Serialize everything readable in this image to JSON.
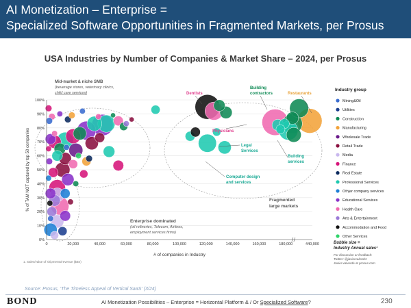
{
  "header": {
    "line1": "AI Monetization – Enterprise =",
    "line2": "Specialized Software Opportunities in Fragmented Markets, per Prosus"
  },
  "subtitle": "USA Industries by Number of Companies & Market Share – 2024, per Prosus",
  "source": "Source: Prosus, 'The Timeless Appeal of Vertical SaaS' (3/24)",
  "footer": {
    "logo": "BOND",
    "text_prefix": "AI Monetization Possibilities – Enterprise = Horizontal Platform & / Or ",
    "text_link": "Specialized Software",
    "text_suffix": "?",
    "page": "230"
  },
  "chart_data": {
    "type": "scatter",
    "xlabel": "# of companies in Industry",
    "ylabel": "% of TAM NOT captured by top 50 companies",
    "footnote": "1. Sales/value of shipments/revenue ($Bn)",
    "x_ticks": [
      "0",
      "20,000",
      "40,000",
      "60,000",
      "80,000",
      "100,000",
      "120,000",
      "140,000",
      "160,000",
      "180,000",
      "440,000"
    ],
    "y_ticks": [
      "0%",
      "10%",
      "20%",
      "30%",
      "40%",
      "50%",
      "60%",
      "70%",
      "80%",
      "90%",
      "100%"
    ],
    "xlim": [
      0,
      200000
    ],
    "ylim": [
      0,
      100
    ],
    "legend_title": "Industry group",
    "legend": [
      {
        "name": "Mining&Oil",
        "color": "#3a6ccf"
      },
      {
        "name": "Utilities",
        "color": "#1c3f8f"
      },
      {
        "name": "Construction",
        "color": "#0f8a55"
      },
      {
        "name": "Manufacturing",
        "color": "#f2a33a"
      },
      {
        "name": "Wholesale Trade",
        "color": "#6a1a8a"
      },
      {
        "name": "Retail Trade",
        "color": "#8a1040"
      },
      {
        "name": "Media",
        "color": "#c9b8ee"
      },
      {
        "name": "Finance",
        "color": "#d6157a"
      },
      {
        "name": "Real Estate",
        "color": "#0b2a5e"
      },
      {
        "name": "Professional Services",
        "color": "#1fc9b0"
      },
      {
        "name": "Othjer company services",
        "color": "#1e7fd6"
      },
      {
        "name": "Educational Services",
        "color": "#8a32c9"
      },
      {
        "name": "Health Care",
        "color": "#f06ab0"
      },
      {
        "name": "Arts & Entertainment",
        "color": "#9b7ad8"
      },
      {
        "name": "Accommodation and Food",
        "color": "#111111"
      },
      {
        "name": "Other Services",
        "color": "#2fd46a"
      }
    ],
    "size_note": "Bubble size = Industry Annual sales¹",
    "contact": [
      "For discussion or feedback:",
      "Twitter: @javiervalerobt",
      "Javier.valverde at prosus.com"
    ],
    "annotations": {
      "midmarket": [
        "Mid-market & niche SMB",
        "(beverage stores, veterinary clinics,",
        "child care services)"
      ],
      "dentists": "Dentists",
      "building_contractors": [
        "Building",
        "contractors"
      ],
      "restaurants": "Restaurants",
      "physicians": "Physicians",
      "legal": [
        "Legal",
        "Services"
      ],
      "building_services": [
        "Building",
        "services"
      ],
      "computer": [
        "Computer design",
        "and services"
      ],
      "fragmented": [
        "Fragmented",
        "large markets"
      ],
      "enterprise": [
        "Enterprise dominated",
        "(oil refineries, Telecom, Airlines,",
        "employment services firms)"
      ]
    },
    "points": [
      {
        "x": 121000,
        "y": 95,
        "r": 3,
        "color": "#111111"
      },
      {
        "x": 130000,
        "y": 96,
        "r": 1.4,
        "color": "#0f8a55"
      },
      {
        "x": 126000,
        "y": 92,
        "r": 2.2,
        "color": "#f06ab0"
      },
      {
        "x": 185000,
        "y": 87,
        "r": 1.5,
        "color": "#0f8a55"
      },
      {
        "x": 190000,
        "y": 94,
        "r": 2.3,
        "color": "#0f8a55"
      },
      {
        "x": 198000,
        "y": 85,
        "r": 3.0,
        "color": "#f2a33a"
      },
      {
        "x": 172000,
        "y": 84,
        "r": 3.2,
        "color": "#f06ab0"
      },
      {
        "x": 185000,
        "y": 83,
        "r": 2.4,
        "color": "#0f8a55"
      },
      {
        "x": 179000,
        "y": 83,
        "r": 1.2,
        "color": "#1fc9b0"
      },
      {
        "x": 174000,
        "y": 82,
        "r": 1.4,
        "color": "#1fc9b0"
      },
      {
        "x": 182000,
        "y": 78,
        "r": 2.3,
        "color": "#1fc9b0"
      },
      {
        "x": 186000,
        "y": 75,
        "r": 1.8,
        "color": "#0f8a55"
      },
      {
        "x": 176000,
        "y": 79,
        "r": 1.1,
        "color": "#1fc9b0"
      },
      {
        "x": 121000,
        "y": 69,
        "r": 2.2,
        "color": "#1fc9b0"
      },
      {
        "x": 108000,
        "y": 74,
        "r": 1.2,
        "color": "#1fc9b0"
      },
      {
        "x": 112000,
        "y": 77,
        "r": 1.2,
        "color": "#111111"
      },
      {
        "x": 135000,
        "y": 91,
        "r": 1.5,
        "color": "#0f8a55"
      },
      {
        "x": 128000,
        "y": 77,
        "r": 1.0,
        "color": "#1fc9b0"
      },
      {
        "x": 134000,
        "y": 66,
        "r": 1.6,
        "color": "#1fc9b0"
      },
      {
        "x": 82000,
        "y": 93,
        "r": 1.1,
        "color": "#1fc9b0"
      },
      {
        "x": 54000,
        "y": 85,
        "r": 1.2,
        "color": "#f06ab0"
      },
      {
        "x": 45000,
        "y": 83,
        "r": 2.1,
        "color": "#1fc9b0"
      },
      {
        "x": 42000,
        "y": 82,
        "r": 2.6,
        "color": "#8a32c9"
      },
      {
        "x": 36000,
        "y": 83,
        "r": 1.8,
        "color": "#1fc9b0"
      },
      {
        "x": 60000,
        "y": 83,
        "r": 0.7,
        "color": "#9b7ad8"
      },
      {
        "x": 58000,
        "y": 81,
        "r": 1.0,
        "color": "#0f8a55"
      },
      {
        "x": 30000,
        "y": 78,
        "r": 2.3,
        "color": "#8a32c9"
      },
      {
        "x": 25000,
        "y": 76,
        "r": 1.6,
        "color": "#0f8a55"
      },
      {
        "x": 20000,
        "y": 74,
        "r": 1.8,
        "color": "#d6157a"
      },
      {
        "x": 14000,
        "y": 71,
        "r": 2.0,
        "color": "#1fc9b0"
      },
      {
        "x": 6000,
        "y": 70,
        "r": 1.6,
        "color": "#d6157a"
      },
      {
        "x": 3000,
        "y": 72,
        "r": 1.3,
        "color": "#8a32c9"
      },
      {
        "x": 10000,
        "y": 65,
        "r": 1.4,
        "color": "#0f8a55"
      },
      {
        "x": 22000,
        "y": 64,
        "r": 1.7,
        "color": "#6a1a8a"
      },
      {
        "x": 34000,
        "y": 69,
        "r": 1.6,
        "color": "#8a1040"
      },
      {
        "x": 40000,
        "y": 73,
        "r": 1.2,
        "color": "#8a1040"
      },
      {
        "x": 47000,
        "y": 63,
        "r": 1.4,
        "color": "#1fc9b0"
      },
      {
        "x": 14000,
        "y": 58,
        "r": 1.5,
        "color": "#8a1040"
      },
      {
        "x": 8000,
        "y": 60,
        "r": 1.3,
        "color": "#1fc9b0"
      },
      {
        "x": 20000,
        "y": 54,
        "r": 1.1,
        "color": "#f06ab0"
      },
      {
        "x": 12000,
        "y": 50,
        "r": 1.8,
        "color": "#8a1040"
      },
      {
        "x": 5000,
        "y": 48,
        "r": 1.2,
        "color": "#d6157a"
      },
      {
        "x": 30000,
        "y": 56,
        "r": 1.1,
        "color": "#f2a33a"
      },
      {
        "x": 28000,
        "y": 47,
        "r": 1.0,
        "color": "#d6157a"
      },
      {
        "x": 32000,
        "y": 58,
        "r": 0.8,
        "color": "#0b2a5e"
      },
      {
        "x": 54000,
        "y": 53,
        "r": 1.3,
        "color": "#d6157a"
      },
      {
        "x": 16000,
        "y": 43,
        "r": 1.5,
        "color": "#8a32c9"
      },
      {
        "x": 8000,
        "y": 37,
        "r": 2.0,
        "color": "#d6157a"
      },
      {
        "x": 3000,
        "y": 33,
        "r": 1.3,
        "color": "#8a32c9"
      },
      {
        "x": 8000,
        "y": 32,
        "r": 1.7,
        "color": "#c9b8ee"
      },
      {
        "x": 14000,
        "y": 33,
        "r": 1.2,
        "color": "#1e7fd6"
      },
      {
        "x": 6000,
        "y": 28,
        "r": 1.4,
        "color": "#9b7ad8"
      },
      {
        "x": 10000,
        "y": 24,
        "r": 2.2,
        "color": "#f06ab0"
      },
      {
        "x": 4000,
        "y": 20,
        "r": 1.2,
        "color": "#9b7ad8"
      },
      {
        "x": 14000,
        "y": 17,
        "r": 1.3,
        "color": "#8a32c9"
      },
      {
        "x": 8000,
        "y": 13,
        "r": 1.6,
        "color": "#c9b8ee"
      },
      {
        "x": 3000,
        "y": 7,
        "r": 1.6,
        "color": "#1e7fd6"
      },
      {
        "x": 12000,
        "y": 6,
        "r": 1.1,
        "color": "#1c3f8f"
      },
      {
        "x": 6000,
        "y": 3,
        "r": 1.0,
        "color": "#c9b8ee"
      },
      {
        "x": 1500,
        "y": 94,
        "r": 0.8,
        "color": "#d6157a"
      },
      {
        "x": 4000,
        "y": 88,
        "r": 0.8,
        "color": "#f06ab0"
      },
      {
        "x": 2000,
        "y": 85,
        "r": 0.8,
        "color": "#3a6ccf"
      },
      {
        "x": 10000,
        "y": 90,
        "r": 0.7,
        "color": "#8a32c9"
      },
      {
        "x": 16000,
        "y": 86,
        "r": 0.8,
        "color": "#0b2a5e"
      },
      {
        "x": 19000,
        "y": 89,
        "r": 0.8,
        "color": "#f2a33a"
      },
      {
        "x": 6000,
        "y": 76,
        "r": 0.7,
        "color": "#f06ab0"
      },
      {
        "x": 1500,
        "y": 65,
        "r": 0.7,
        "color": "#d6157a"
      },
      {
        "x": 2000,
        "y": 56,
        "r": 0.8,
        "color": "#8a32c9"
      },
      {
        "x": 22000,
        "y": 40,
        "r": 0.7,
        "color": "#0f8a55"
      },
      {
        "x": 1500,
        "y": 44,
        "r": 0.7,
        "color": "#1e7fd6"
      },
      {
        "x": 2500,
        "y": 26,
        "r": 0.7,
        "color": "#111111"
      },
      {
        "x": 15000,
        "y": 66,
        "r": 0.7,
        "color": "#3a6ccf"
      },
      {
        "x": 39000,
        "y": 88,
        "r": 0.7,
        "color": "#f06ab0"
      },
      {
        "x": 27000,
        "y": 92,
        "r": 0.7,
        "color": "#3a6ccf"
      },
      {
        "x": 50000,
        "y": 89,
        "r": 0.6,
        "color": "#0f8a55"
      },
      {
        "x": 64000,
        "y": 86,
        "r": 0.6,
        "color": "#8a1040"
      },
      {
        "x": 3000,
        "y": 15,
        "r": 0.7,
        "color": "#3a6ccf"
      },
      {
        "x": 18000,
        "y": 27,
        "r": 0.7,
        "color": "#8a1040"
      },
      {
        "x": 24000,
        "y": 60,
        "r": 0.7,
        "color": "#2fd46a"
      }
    ]
  }
}
